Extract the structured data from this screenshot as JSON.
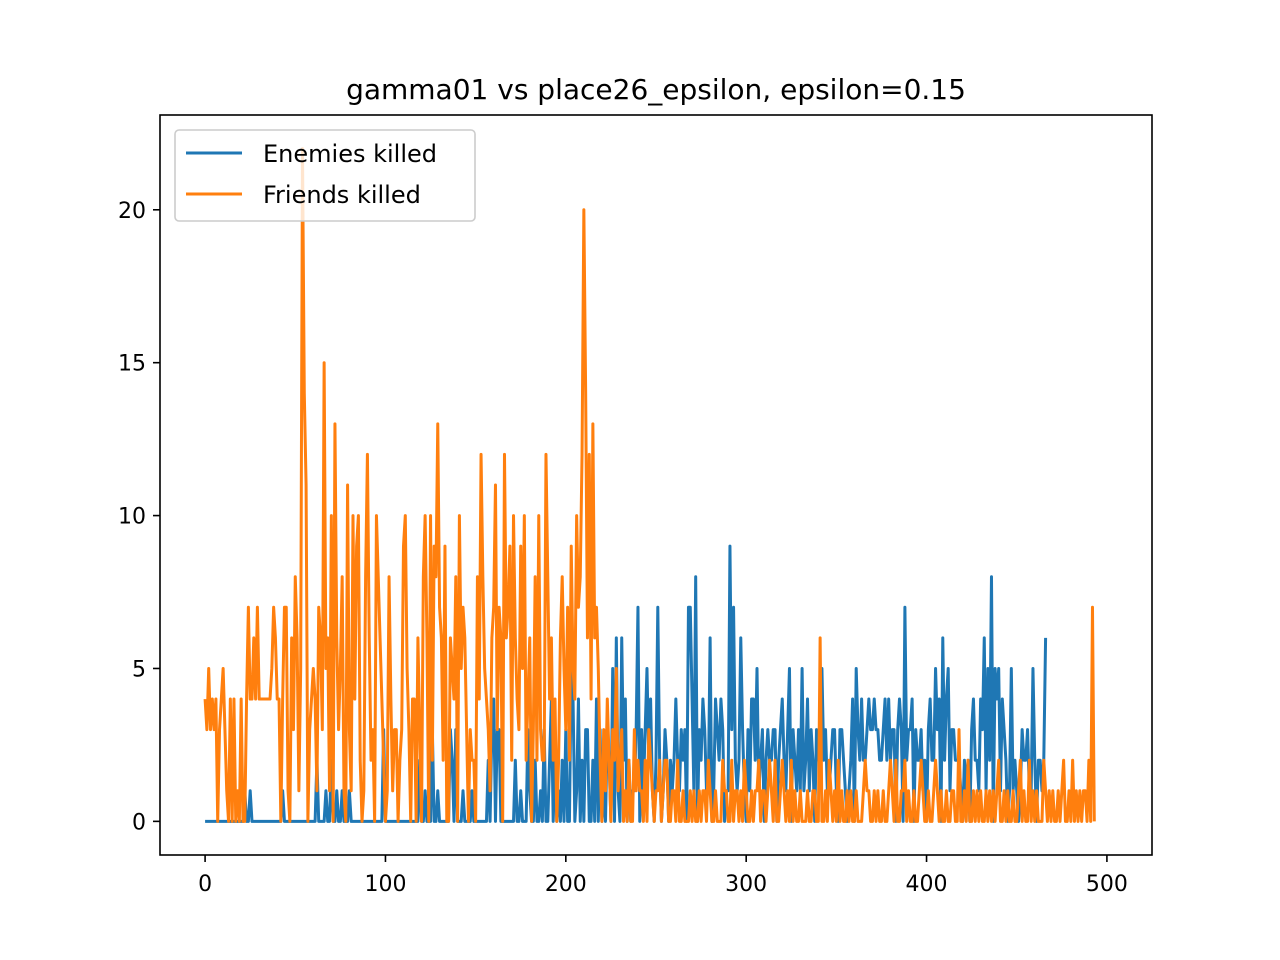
{
  "chart_data": {
    "type": "line",
    "title": "gamma01 vs place26_epsilon, epsilon=0.15",
    "xlabel": "",
    "ylabel": "",
    "xlim": [
      -25,
      525
    ],
    "ylim": [
      -1.1,
      23.1
    ],
    "x_ticks": [
      0,
      100,
      200,
      300,
      400,
      500
    ],
    "y_ticks": [
      0,
      5,
      10,
      15,
      20
    ],
    "x_tick_labels": [
      "0",
      "100",
      "200",
      "300",
      "400",
      "500"
    ],
    "y_tick_labels": [
      "0",
      "5",
      "10",
      "15",
      "20"
    ],
    "legend_position": "upper left",
    "grid": false,
    "series": [
      {
        "name": "Enemies killed",
        "color": "#1f77b4",
        "values": [
          0,
          0,
          0,
          0,
          0,
          0,
          0,
          0,
          0,
          0,
          0,
          0,
          0,
          0,
          0,
          0,
          0,
          0,
          0,
          0,
          0,
          0,
          1,
          0,
          0,
          1,
          0,
          0,
          0,
          0,
          0,
          0,
          0,
          0,
          0,
          0,
          0,
          0,
          0,
          0,
          0,
          0,
          0,
          1,
          0,
          0,
          0,
          0,
          0,
          0,
          0,
          0,
          0,
          0,
          0,
          0,
          0,
          0,
          0,
          0,
          0,
          0,
          2,
          0,
          0,
          0,
          0,
          1,
          0,
          0,
          2,
          0,
          0,
          1,
          0,
          0,
          1,
          0,
          0,
          0,
          1,
          0,
          0,
          0,
          0,
          0,
          0,
          0,
          0,
          0,
          0,
          0,
          0,
          0,
          0,
          0,
          0,
          0,
          0,
          3,
          0,
          0,
          0,
          0,
          0,
          0,
          0,
          0,
          0,
          0,
          0,
          0,
          0,
          0,
          0,
          0,
          0,
          0,
          0,
          2,
          0,
          0,
          1,
          0,
          0,
          0,
          3,
          0,
          0,
          1,
          0,
          0,
          0,
          0,
          0,
          0,
          3,
          2,
          0,
          3,
          0,
          0,
          0,
          1,
          0,
          0,
          0,
          0,
          1,
          0,
          0,
          0,
          0,
          0,
          0,
          0,
          0,
          2,
          0,
          3,
          4,
          0,
          3,
          3,
          0,
          0,
          0,
          0,
          0,
          0,
          0,
          0,
          2,
          0,
          0,
          1,
          0,
          0,
          0,
          3,
          1,
          0,
          0,
          2,
          0,
          0,
          1,
          0,
          3,
          0,
          0,
          2,
          4,
          0,
          2,
          0,
          1,
          0,
          2,
          0,
          3,
          0,
          0,
          5,
          4,
          0,
          1,
          4,
          0,
          2,
          0,
          3,
          3,
          0,
          0,
          2,
          0,
          4,
          0,
          3,
          0,
          1,
          0,
          3,
          2,
          0,
          5,
          0,
          6,
          1,
          0,
          6,
          2,
          4,
          0,
          2,
          0,
          1,
          1,
          3,
          7,
          0,
          3,
          1,
          3,
          5,
          2,
          4,
          1,
          0,
          2,
          7,
          2,
          0,
          1,
          3,
          2,
          0,
          2,
          1,
          2,
          4,
          2,
          1,
          3,
          2,
          3,
          0,
          7,
          7,
          4,
          1,
          8,
          0,
          3,
          2,
          4,
          3,
          1,
          1,
          6,
          0,
          1,
          4,
          3,
          2,
          4,
          3,
          0,
          1,
          1,
          9,
          3,
          7,
          2,
          1,
          2,
          6,
          3,
          1,
          0,
          3,
          1,
          4,
          4,
          2,
          5,
          1,
          2,
          3,
          0,
          2,
          3,
          2,
          2,
          3,
          3,
          0,
          2,
          3,
          4,
          2,
          1,
          3,
          5,
          0,
          3,
          2,
          1,
          3,
          1,
          5,
          1,
          2,
          4,
          1,
          3,
          2,
          0,
          3,
          2,
          2,
          5,
          2,
          3,
          1,
          1,
          2,
          3,
          3,
          1,
          0,
          3,
          3,
          2,
          1,
          0,
          1,
          2,
          4,
          0,
          5,
          3,
          2,
          4,
          2,
          2,
          3,
          4,
          3,
          3,
          4,
          3,
          3,
          2,
          2,
          3,
          4,
          2,
          4,
          2,
          3,
          3,
          0,
          3,
          4,
          3,
          0,
          7,
          2,
          3,
          3,
          4,
          0,
          3,
          2,
          2,
          3,
          1,
          2,
          0,
          3,
          4,
          2,
          2,
          5,
          3,
          4,
          0,
          6,
          2,
          4,
          5,
          1,
          3,
          3,
          2,
          2,
          2,
          1,
          0,
          2,
          1,
          2,
          0,
          3,
          4,
          2,
          2,
          1,
          4,
          3,
          6,
          1,
          5,
          2,
          8,
          0,
          5,
          4,
          5,
          1,
          4,
          3,
          2,
          0,
          1,
          5,
          1,
          2,
          1,
          0,
          1,
          3,
          2,
          2,
          3,
          1,
          1,
          5,
          2,
          0,
          2,
          2,
          1,
          2,
          6
        ]
      },
      {
        "name": "Friends killed",
        "color": "#ff7f0e",
        "values": [
          4,
          3,
          5,
          3,
          4,
          3,
          4,
          0,
          3,
          4,
          5,
          3,
          1,
          0,
          4,
          0,
          4,
          0,
          1,
          0,
          4,
          0,
          0,
          4,
          7,
          4,
          4,
          6,
          4,
          7,
          4,
          4,
          4,
          4,
          4,
          4,
          4,
          5,
          7,
          6,
          4,
          4,
          0,
          4,
          7,
          7,
          1,
          0,
          6,
          3,
          8,
          6,
          1,
          5,
          22,
          14,
          11,
          0,
          3,
          4,
          5,
          4,
          1,
          7,
          6,
          3,
          15,
          5,
          6,
          1,
          10,
          0,
          13,
          6,
          3,
          5,
          8,
          1,
          0,
          11,
          3,
          1,
          10,
          4,
          9,
          10,
          2,
          0,
          1,
          8,
          12,
          6,
          2,
          3,
          0,
          10,
          8,
          6,
          4,
          2,
          0,
          1,
          8,
          4,
          1,
          3,
          3,
          0,
          2,
          3,
          9,
          10,
          5,
          3,
          0,
          4,
          4,
          0,
          6,
          3,
          0,
          8,
          10,
          6,
          0,
          10,
          2,
          9,
          8,
          13,
          7,
          6,
          2,
          9,
          0,
          0,
          6,
          5,
          4,
          8,
          0,
          10,
          5,
          7,
          6,
          3,
          0,
          3,
          2,
          2,
          0,
          8,
          4,
          12,
          8,
          5,
          4,
          3,
          1,
          6,
          7,
          11,
          3,
          7,
          6,
          0,
          12,
          6,
          7,
          9,
          2,
          10,
          6,
          4,
          3,
          9,
          5,
          10,
          2,
          4,
          6,
          0,
          3,
          8,
          2,
          10,
          3,
          2,
          2,
          12,
          8,
          4,
          6,
          2,
          4,
          0,
          2,
          6,
          8,
          5,
          3,
          7,
          2,
          9,
          5,
          4,
          10,
          7,
          8,
          12,
          20,
          14,
          6,
          12,
          4,
          13,
          6,
          7,
          5,
          2,
          0,
          3,
          1,
          4,
          2,
          0,
          3,
          2,
          5,
          1,
          2,
          3,
          0,
          1,
          0,
          2,
          0,
          0,
          3,
          1,
          2,
          1,
          1,
          0,
          2,
          0,
          3,
          2,
          1,
          0,
          1,
          1,
          2,
          0,
          1,
          2,
          2,
          0,
          0,
          1,
          1,
          0,
          2,
          0,
          0,
          1,
          0,
          0,
          0,
          1,
          0,
          1,
          0,
          0,
          1,
          0,
          1,
          1,
          0,
          2,
          1,
          0,
          0,
          1,
          0,
          0,
          0,
          2,
          1,
          1,
          0,
          0,
          2,
          0,
          1,
          1,
          0,
          1,
          0,
          2,
          1,
          0,
          0,
          1,
          0,
          1,
          1,
          2,
          0,
          1,
          1,
          0,
          1,
          2,
          1,
          0,
          2,
          0,
          0,
          1,
          2,
          1,
          0,
          1,
          0,
          2,
          0,
          1,
          0,
          0,
          1,
          0,
          0,
          0,
          1,
          0,
          0,
          1,
          1,
          0,
          0,
          6,
          0,
          0,
          1,
          0,
          2,
          1,
          0,
          1,
          0,
          2,
          0,
          1,
          0,
          0,
          1,
          0,
          1,
          0,
          0,
          1,
          0,
          0,
          0,
          1,
          2,
          1,
          1,
          0,
          0,
          1,
          0,
          1,
          0,
          0,
          1,
          0,
          0,
          1,
          2,
          1,
          0,
          2,
          0,
          0,
          1,
          1,
          2,
          0,
          1,
          0,
          0,
          1,
          0,
          0,
          1,
          2,
          1,
          0,
          0,
          1,
          0,
          0,
          1,
          2,
          1,
          0,
          1,
          0,
          0,
          1,
          0,
          0,
          1,
          1,
          0,
          0,
          3,
          0,
          0,
          1,
          0,
          2,
          0,
          0,
          1,
          0,
          1,
          0,
          1,
          0,
          0,
          1,
          0,
          1,
          0,
          1,
          0,
          1,
          2,
          0,
          0,
          1,
          0,
          1,
          0,
          0,
          1,
          0,
          0,
          1,
          2,
          0,
          1,
          0,
          0,
          2,
          0,
          1,
          0,
          1,
          0,
          0,
          0,
          2,
          1,
          0,
          1,
          0,
          1,
          0,
          0,
          1,
          0,
          1,
          2,
          0,
          0,
          1,
          0,
          2,
          0,
          1,
          0,
          1,
          0,
          1,
          1,
          0,
          2,
          0,
          7,
          0
        ]
      }
    ]
  }
}
